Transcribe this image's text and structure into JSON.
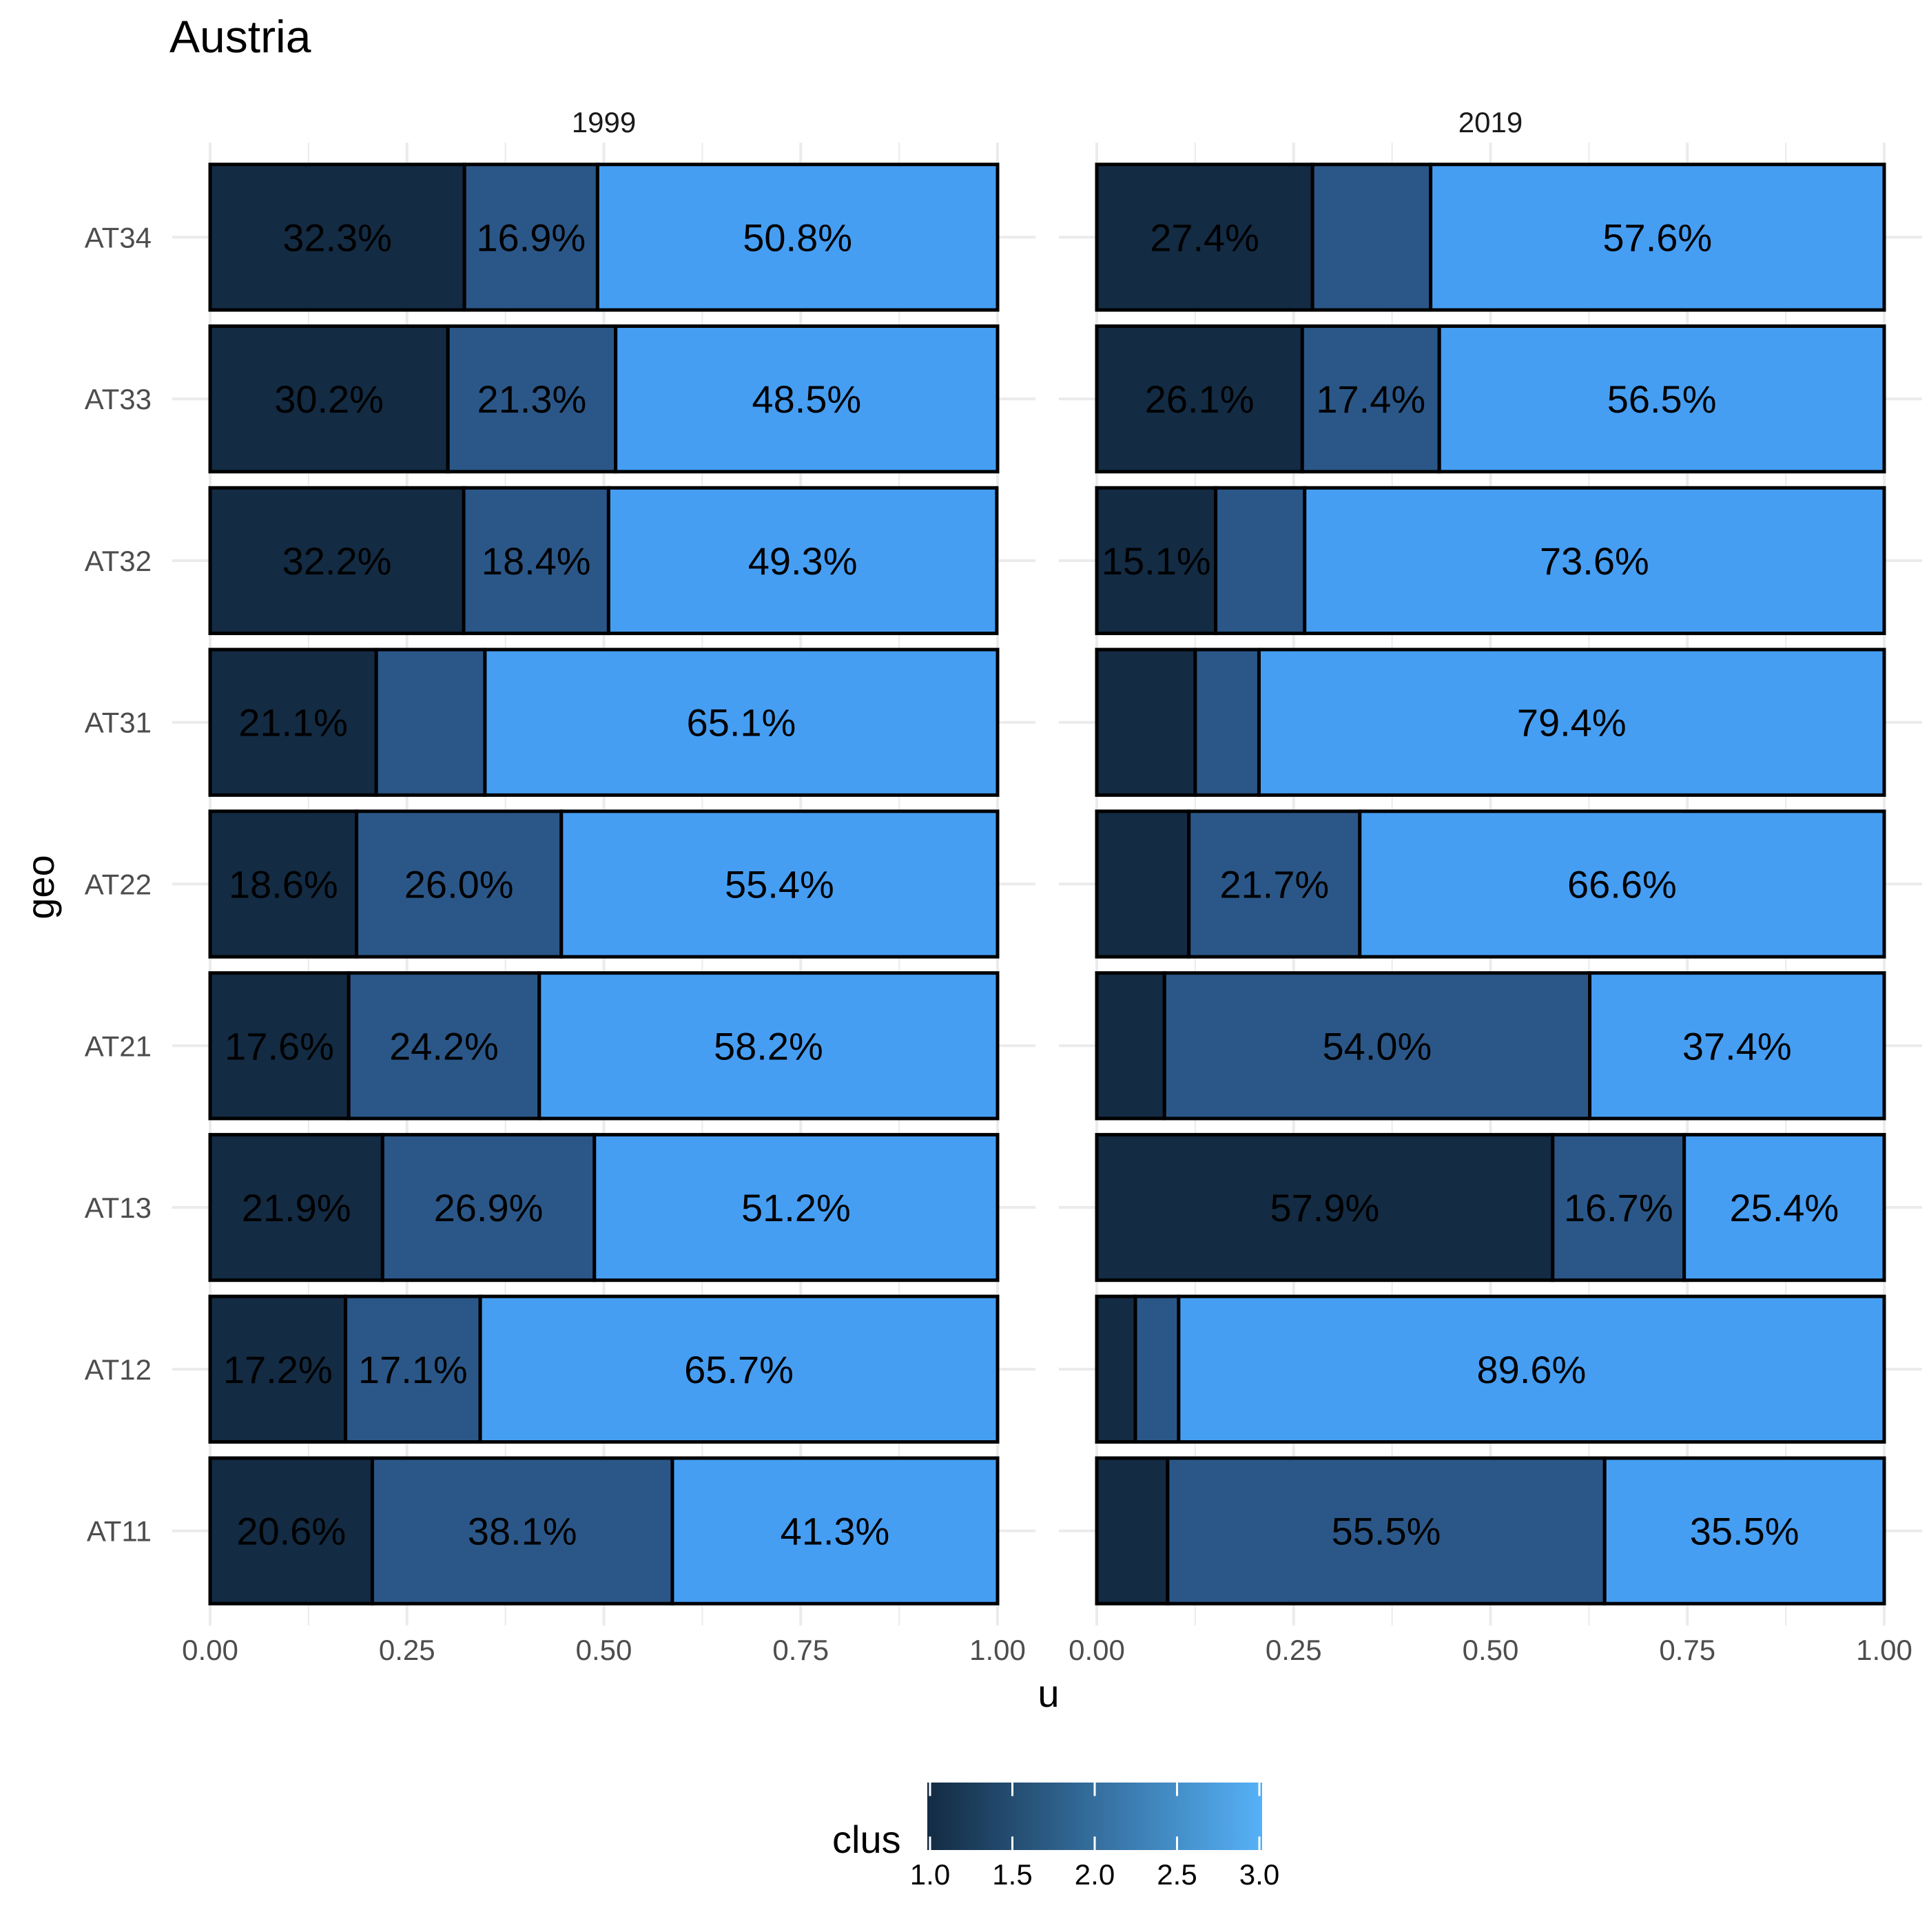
{
  "chart_data": {
    "type": "bar",
    "orientation": "horizontal",
    "stacked": true,
    "title": "Austria",
    "xlabel": "u",
    "ylabel": "geo",
    "xlim": [
      0,
      1
    ],
    "x_ticks": [
      "0.00",
      "0.25",
      "0.50",
      "0.75",
      "1.00"
    ],
    "categories": [
      "AT11",
      "AT12",
      "AT13",
      "AT21",
      "AT22",
      "AT31",
      "AT32",
      "AT33",
      "AT34"
    ],
    "grid": true,
    "legend": {
      "title": "clus",
      "placement": "bottom",
      "range": [
        1,
        3
      ],
      "ticks": [
        "1.0",
        "1.5",
        "2.0",
        "2.5",
        "3.0"
      ],
      "gradient_low": "#132B43",
      "gradient_high": "#56B1F7"
    },
    "facets": [
      {
        "label": "1999",
        "bars": {
          "AT11": [
            {
              "clus": 1,
              "value": 0.206,
              "label": "20.6%"
            },
            {
              "clus": 2,
              "value": 0.381,
              "label": "38.1%"
            },
            {
              "clus": 3,
              "value": 0.413,
              "label": "41.3%"
            }
          ],
          "AT12": [
            {
              "clus": 1,
              "value": 0.172,
              "label": "17.2%"
            },
            {
              "clus": 2,
              "value": 0.171,
              "label": "17.1%"
            },
            {
              "clus": 3,
              "value": 0.657,
              "label": "65.7%"
            }
          ],
          "AT13": [
            {
              "clus": 1,
              "value": 0.219,
              "label": "21.9%"
            },
            {
              "clus": 2,
              "value": 0.269,
              "label": "26.9%"
            },
            {
              "clus": 3,
              "value": 0.512,
              "label": "51.2%"
            }
          ],
          "AT21": [
            {
              "clus": 1,
              "value": 0.176,
              "label": "17.6%"
            },
            {
              "clus": 2,
              "value": 0.242,
              "label": "24.2%"
            },
            {
              "clus": 3,
              "value": 0.582,
              "label": "58.2%"
            }
          ],
          "AT22": [
            {
              "clus": 1,
              "value": 0.186,
              "label": "18.6%"
            },
            {
              "clus": 2,
              "value": 0.26,
              "label": "26.0%"
            },
            {
              "clus": 3,
              "value": 0.554,
              "label": "55.4%"
            }
          ],
          "AT31": [
            {
              "clus": 1,
              "value": 0.211,
              "label": "21.1%"
            },
            {
              "clus": 2,
              "value": 0.138,
              "label": ""
            },
            {
              "clus": 3,
              "value": 0.651,
              "label": "65.1%"
            }
          ],
          "AT32": [
            {
              "clus": 1,
              "value": 0.322,
              "label": "32.2%"
            },
            {
              "clus": 2,
              "value": 0.184,
              "label": "18.4%"
            },
            {
              "clus": 3,
              "value": 0.493,
              "label": "49.3%"
            }
          ],
          "AT33": [
            {
              "clus": 1,
              "value": 0.302,
              "label": "30.2%"
            },
            {
              "clus": 2,
              "value": 0.213,
              "label": "21.3%"
            },
            {
              "clus": 3,
              "value": 0.485,
              "label": "48.5%"
            }
          ],
          "AT34": [
            {
              "clus": 1,
              "value": 0.323,
              "label": "32.3%"
            },
            {
              "clus": 2,
              "value": 0.169,
              "label": "16.9%"
            },
            {
              "clus": 3,
              "value": 0.508,
              "label": "50.8%"
            }
          ]
        }
      },
      {
        "label": "2019",
        "bars": {
          "AT11": [
            {
              "clus": 1,
              "value": 0.09,
              "label": ""
            },
            {
              "clus": 2,
              "value": 0.555,
              "label": "55.5%"
            },
            {
              "clus": 3,
              "value": 0.355,
              "label": "35.5%"
            }
          ],
          "AT12": [
            {
              "clus": 1,
              "value": 0.049,
              "label": ""
            },
            {
              "clus": 2,
              "value": 0.055,
              "label": ""
            },
            {
              "clus": 3,
              "value": 0.896,
              "label": "89.6%"
            }
          ],
          "AT13": [
            {
              "clus": 1,
              "value": 0.579,
              "label": "57.9%"
            },
            {
              "clus": 2,
              "value": 0.167,
              "label": "16.7%"
            },
            {
              "clus": 3,
              "value": 0.254,
              "label": "25.4%"
            }
          ],
          "AT21": [
            {
              "clus": 1,
              "value": 0.086,
              "label": ""
            },
            {
              "clus": 2,
              "value": 0.54,
              "label": "54.0%"
            },
            {
              "clus": 3,
              "value": 0.374,
              "label": "37.4%"
            }
          ],
          "AT22": [
            {
              "clus": 1,
              "value": 0.117,
              "label": ""
            },
            {
              "clus": 2,
              "value": 0.217,
              "label": "21.7%"
            },
            {
              "clus": 3,
              "value": 0.666,
              "label": "66.6%"
            }
          ],
          "AT31": [
            {
              "clus": 1,
              "value": 0.125,
              "label": ""
            },
            {
              "clus": 2,
              "value": 0.081,
              "label": ""
            },
            {
              "clus": 3,
              "value": 0.794,
              "label": "79.4%"
            }
          ],
          "AT32": [
            {
              "clus": 1,
              "value": 0.151,
              "label": "15.1%"
            },
            {
              "clus": 2,
              "value": 0.113,
              "label": ""
            },
            {
              "clus": 3,
              "value": 0.736,
              "label": "73.6%"
            }
          ],
          "AT33": [
            {
              "clus": 1,
              "value": 0.261,
              "label": "26.1%"
            },
            {
              "clus": 2,
              "value": 0.174,
              "label": "17.4%"
            },
            {
              "clus": 3,
              "value": 0.565,
              "label": "56.5%"
            }
          ],
          "AT34": [
            {
              "clus": 1,
              "value": 0.274,
              "label": "27.4%"
            },
            {
              "clus": 2,
              "value": 0.15,
              "label": ""
            },
            {
              "clus": 3,
              "value": 0.576,
              "label": "57.6%"
            }
          ]
        }
      }
    ],
    "colors": {
      "clus1": "#132B43",
      "clus2": "#2B5788",
      "clus3": "#469EF3",
      "grid": "#EBEBEB",
      "outline": "#000000"
    }
  }
}
